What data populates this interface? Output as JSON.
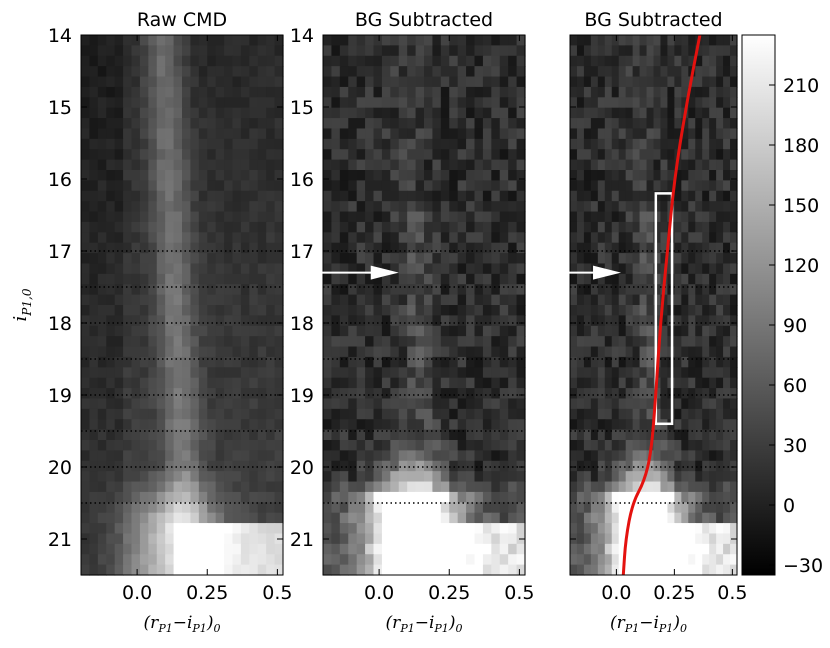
{
  "chart_data": {
    "type": "heatmap",
    "shared_ylabel": "i_{P1,0}",
    "shared_xlabel": "(r_{P1}−i_{P1})_0",
    "ylim": [
      21.5,
      14
    ],
    "xlim": [
      -0.2,
      0.52
    ],
    "y_ticks": [
      "14",
      "15",
      "16",
      "17",
      "18",
      "19",
      "20",
      "21"
    ],
    "x_ticks": [
      "0.0",
      "0.25",
      "0.5"
    ],
    "y_tick_values": [
      14,
      15,
      16,
      17,
      18,
      19,
      20,
      21
    ],
    "x_tick_values": [
      0.0,
      0.25,
      0.5
    ],
    "dotted_lines_at": [
      17.0,
      17.5,
      18.0,
      18.5,
      19.0,
      19.5,
      20.0,
      20.5
    ],
    "arrow_magnitude": 17.3,
    "box": {
      "x": [
        0.17,
        0.24
      ],
      "y": [
        16.2,
        19.4
      ]
    },
    "isochrone": {
      "color": "#e4120f",
      "points": [
        [
          0.03,
          21.5
        ],
        [
          0.04,
          21.0
        ],
        [
          0.07,
          20.5
        ],
        [
          0.12,
          20.2
        ],
        [
          0.15,
          19.8
        ],
        [
          0.17,
          19.0
        ],
        [
          0.19,
          18.0
        ],
        [
          0.22,
          17.0
        ],
        [
          0.25,
          16.0
        ],
        [
          0.3,
          15.0
        ],
        [
          0.36,
          14.0
        ]
      ]
    },
    "colorbar": {
      "range": [
        -35,
        235
      ],
      "ticks": [
        "−30",
        "0",
        "30",
        "60",
        "90",
        "120",
        "150",
        "180",
        "210"
      ],
      "tick_values": [
        -30,
        0,
        30,
        60,
        90,
        120,
        150,
        180,
        210
      ],
      "cmap": "gray"
    },
    "panels": [
      {
        "title": "Raw CMD"
      },
      {
        "title": "BG Subtracted"
      },
      {
        "title": "BG Subtracted"
      }
    ]
  }
}
